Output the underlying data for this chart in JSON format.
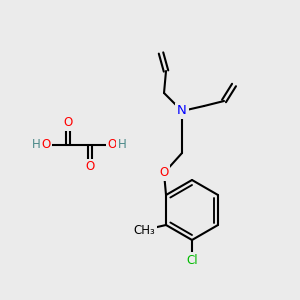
{
  "background_color": "#ebebeb",
  "bond_color": "#000000",
  "bond_width": 1.5,
  "atom_colors": {
    "O": "#ff0000",
    "N": "#0000ff",
    "Cl": "#00bb00",
    "C": "#000000",
    "H": "#4a8888"
  },
  "font_size": 8.5,
  "fig_size": [
    3.0,
    3.0
  ],
  "dpi": 100
}
